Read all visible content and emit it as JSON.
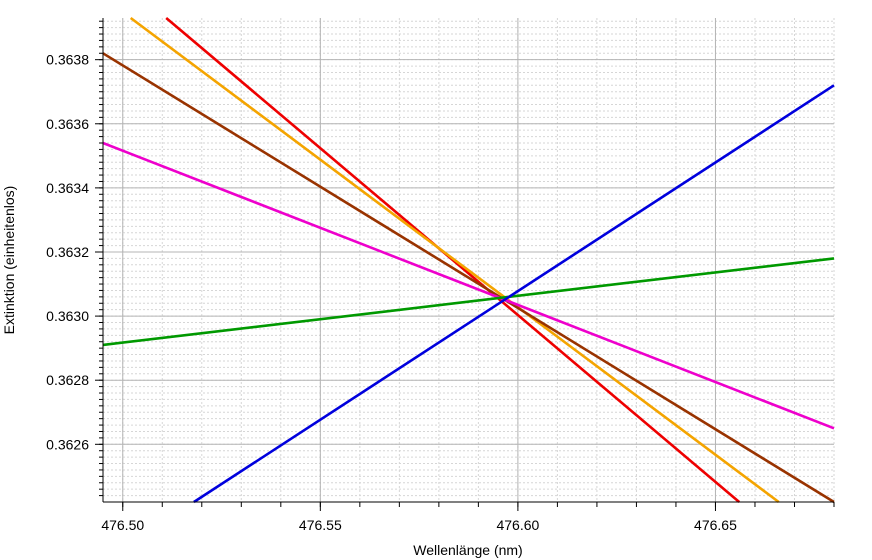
{
  "chart_data": {
    "type": "line",
    "title": "",
    "xlabel": "Wellenlänge (nm)",
    "ylabel": "Extinktion (einheitenlos)",
    "xlim": [
      476.495,
      476.68
    ],
    "ylim": [
      0.36242,
      0.36393
    ],
    "x_ticks": [
      "476.50",
      "476.55",
      "476.60",
      "476.65"
    ],
    "x_tick_values": [
      476.5,
      476.55,
      476.6,
      476.65
    ],
    "y_ticks": [
      "0.3626",
      "0.3628",
      "0.3630",
      "0.3632",
      "0.3634",
      "0.3636",
      "0.3638"
    ],
    "y_tick_values": [
      0.3626,
      0.3628,
      0.363,
      0.3632,
      0.3634,
      0.3636,
      0.3638
    ],
    "grid": true,
    "legend": "none",
    "series": [
      {
        "color": "#ee0000",
        "points": [
          [
            476.511,
            0.36393
          ],
          [
            476.656,
            0.36242
          ]
        ]
      },
      {
        "color": "#f4a400",
        "points": [
          [
            476.502,
            0.36393
          ],
          [
            476.666,
            0.36242
          ]
        ]
      },
      {
        "color": "#993300",
        "points": [
          [
            476.495,
            0.36382
          ],
          [
            476.68,
            0.36242
          ]
        ]
      },
      {
        "color": "#ee00cc",
        "points": [
          [
            476.495,
            0.36354
          ],
          [
            476.68,
            0.36265
          ]
        ]
      },
      {
        "color": "#009900",
        "points": [
          [
            476.495,
            0.36291
          ],
          [
            476.68,
            0.36318
          ]
        ]
      },
      {
        "color": "#0000dd",
        "points": [
          [
            476.518,
            0.36242
          ],
          [
            476.68,
            0.36372
          ]
        ]
      }
    ]
  }
}
